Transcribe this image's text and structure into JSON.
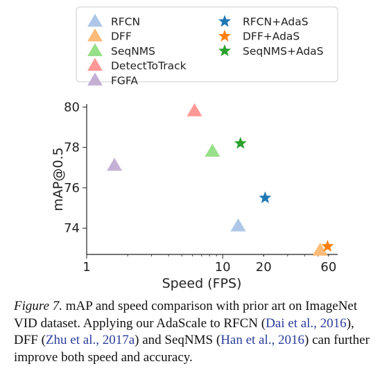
{
  "chart_data": {
    "type": "scatter",
    "xlabel": "Speed (FPS)",
    "ylabel": "mAP@0.5",
    "xscale": "log",
    "xlim": [
      1,
      70
    ],
    "ylim": [
      72.7,
      80.15
    ],
    "xticks": [
      1,
      10,
      20,
      60
    ],
    "xtick_labels": [
      "1",
      "10",
      "20",
      "60"
    ],
    "yticks": [
      74,
      76,
      78,
      80
    ],
    "ytick_labels": [
      "74",
      "76",
      "78",
      "80"
    ],
    "grid": false,
    "legend_position": "top",
    "series": [
      {
        "name": "RFCN",
        "marker": "triangle",
        "color": "#aec7e8",
        "x": 13,
        "y": 74.1
      },
      {
        "name": "DFF",
        "marker": "triangle",
        "color": "#ffbb78",
        "x": 52,
        "y": 72.9
      },
      {
        "name": "SeqNMS",
        "marker": "triangle",
        "color": "#98df8a",
        "x": 8.4,
        "y": 77.8
      },
      {
        "name": "DetectToTrack",
        "marker": "triangle",
        "color": "#ff9896",
        "x": 6.2,
        "y": 79.8
      },
      {
        "name": "FGFA",
        "marker": "triangle",
        "color": "#c5b0d5",
        "x": 1.6,
        "y": 77.1
      },
      {
        "name": "RFCN+AdaS",
        "marker": "star",
        "color": "#1f77b4",
        "x": 20.5,
        "y": 75.5
      },
      {
        "name": "DFF+AdaS",
        "marker": "star",
        "color": "#ff7f0e",
        "x": 59,
        "y": 73.1
      },
      {
        "name": "SeqNMS+AdaS",
        "marker": "star",
        "color": "#2ca02c",
        "x": 13.5,
        "y": 78.2
      }
    ]
  },
  "caption": {
    "figure_label": "Figure 7.",
    "text_1": " mAP and speed comparison with prior art on ImageNet VID dataset. Applying our AdaScale to RFCN (",
    "cite_1": "Dai et al., 2016",
    "text_2": "), DFF (",
    "cite_2": "Zhu et al., 2017a",
    "text_3": ") and SeqNMS (",
    "cite_3": "Han et al., 2016",
    "text_4": ") can further improve both speed and accuracy."
  }
}
